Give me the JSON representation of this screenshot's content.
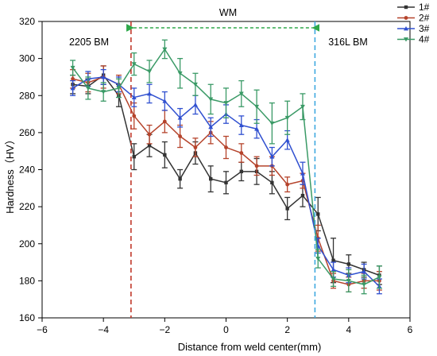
{
  "chart_data": {
    "type": "line",
    "xlabel": "Distance from weld center(mm)",
    "ylabel": "Hardness（HV）",
    "xlim": [
      -6,
      6
    ],
    "ylim": [
      160,
      320
    ],
    "xticks": [
      "−6",
      "−4",
      "−2",
      "0",
      "2",
      "4",
      "6"
    ],
    "yticks": [
      "160",
      "180",
      "200",
      "220",
      "240",
      "260",
      "280",
      "300",
      "320"
    ],
    "grid": false,
    "legend_position": "top-right",
    "x": [
      -5,
      -4.5,
      -4,
      -3.5,
      -3,
      -2.5,
      -2,
      -1.5,
      -1,
      -0.5,
      0,
      0.5,
      1,
      1.5,
      2,
      2.5,
      3,
      3.5,
      4,
      4.5,
      5
    ],
    "series": [
      {
        "name": "1#",
        "color": "#333333",
        "values": [
          286,
          285,
          291,
          280,
          247,
          253,
          248,
          235,
          249,
          235,
          233,
          239,
          239,
          233,
          219,
          226,
          216,
          191,
          189,
          186,
          183
        ],
        "errors": [
          5,
          4,
          5,
          6,
          7,
          6,
          7,
          5,
          6,
          7,
          6,
          5,
          7,
          6,
          6,
          6,
          9,
          12,
          5,
          4,
          5
        ]
      },
      {
        "name": "2#",
        "color": "#b5432b",
        "values": [
          289,
          287,
          290,
          286,
          269,
          259,
          266,
          258,
          252,
          260,
          252,
          249,
          242,
          242,
          232,
          234,
          203,
          180,
          178,
          180,
          180
        ],
        "errors": [
          5,
          5,
          6,
          5,
          7,
          5,
          6,
          6,
          5,
          6,
          6,
          5,
          5,
          5,
          4,
          4,
          7,
          4,
          4,
          4,
          5
        ]
      },
      {
        "name": "3#",
        "color": "#3050d0",
        "values": [
          284,
          289,
          290,
          286,
          279,
          281,
          277,
          268,
          275,
          263,
          270,
          264,
          262,
          247,
          256,
          238,
          199,
          186,
          183,
          185,
          177
        ],
        "errors": [
          4,
          4,
          4,
          4,
          5,
          5,
          5,
          5,
          5,
          5,
          5,
          5,
          5,
          5,
          5,
          6,
          4,
          4,
          4,
          4,
          4
        ]
      },
      {
        "name": "4#",
        "color": "#3a9a66",
        "values": [
          295,
          284,
          282,
          284,
          297,
          293,
          305,
          292,
          286,
          278,
          276,
          281,
          274,
          265,
          268,
          274,
          192,
          181,
          180,
          178,
          182
        ],
        "errors": [
          4,
          6,
          5,
          5,
          6,
          6,
          5,
          8,
          6,
          8,
          8,
          7,
          9,
          11,
          9,
          7,
          5,
          4,
          6,
          5,
          6
        ]
      }
    ],
    "annotations": [
      {
        "text": "2205 BM"
      },
      {
        "text": "WM"
      },
      {
        "text": "316L BM"
      }
    ],
    "vlines": [
      {
        "x": -3.1,
        "color": "#c0392b",
        "style": "dashed"
      },
      {
        "x": 2.9,
        "color": "#3fa9e0",
        "style": "dashed"
      }
    ],
    "wm_arrow": {
      "x1": -3.1,
      "x2": 2.9,
      "color": "#2ea84a"
    }
  }
}
